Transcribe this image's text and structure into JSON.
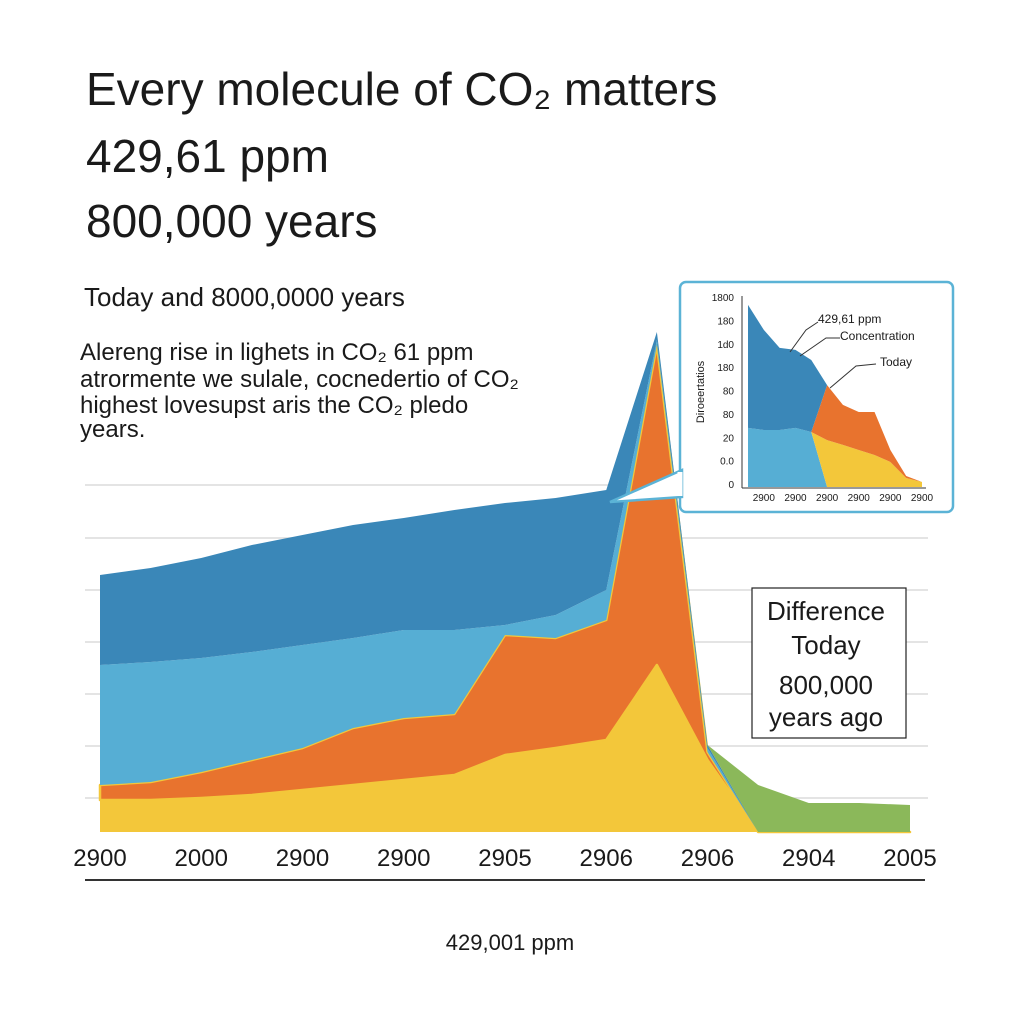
{
  "chart_data": [
    {
      "type": "area",
      "title": "Every molecule of CO₂ matters",
      "subtitle_lines": [
        "429,61 ppm",
        "800,000 years"
      ],
      "heading": "Today and 8000,0000 years",
      "description": [
        "Alereng rise in lighets in CO₂ 61 ppm",
        "atrormente we sulale, cocnedertio of CO₂",
        "highest lovesupst aris the CO₂ pledo",
        "years."
      ],
      "annotation": [
        "Difference",
        "Today",
        "800,000",
        "years ago"
      ],
      "footer": "429,001 ppm",
      "categories": [
        "2900",
        null,
        "2000",
        null,
        "2900",
        null,
        "2900",
        null,
        "2905",
        null,
        "2906",
        null,
        "2906",
        null,
        "2904",
        null,
        "2005"
      ],
      "ylim": [
        0,
        100
      ],
      "series": [
        {
          "color": "#f3c73a",
          "values": [
            6.4,
            6.4,
            6.8,
            7.4,
            8.4,
            9.4,
            10.4,
            11.4,
            15.4,
            16.8,
            18.4,
            33.4,
            14.4,
            0,
            0,
            0,
            0
          ]
        },
        {
          "color": "#e8732e",
          "values": [
            3,
            3.6,
            5.2,
            7,
            8.4,
            11.4,
            12.4,
            12.2,
            24,
            22,
            24,
            64,
            1.6,
            0,
            0,
            0,
            0
          ]
        },
        {
          "color": "#56aed4",
          "values": [
            24,
            24,
            22.8,
            21.6,
            20.6,
            18,
            17.6,
            16.8,
            2,
            4.6,
            6,
            1,
            0.8,
            0,
            0,
            0,
            0
          ]
        },
        {
          "color": "#3a87b8",
          "values": [
            18,
            18.8,
            20,
            21.4,
            22,
            22.6,
            22.4,
            24,
            24.4,
            23.4,
            20,
            1.6,
            0.6,
            0,
            0,
            0,
            0
          ]
        },
        {
          "color": "#8bb85a",
          "values": [
            0,
            0,
            0,
            0,
            0,
            0,
            0,
            0,
            0,
            0,
            0,
            0,
            0,
            9.4,
            5.8,
            5.8,
            5.4
          ]
        }
      ]
    },
    {
      "type": "area",
      "y_label": "Diroeertatios",
      "y_labels": [
        "1800",
        "180",
        "1d0",
        "180",
        "80",
        "80",
        "20",
        "0.0",
        "0"
      ],
      "annotations": [
        "429,61 ppm",
        "Concentration",
        "Today"
      ],
      "categories": [
        null,
        "2900",
        null,
        "2900",
        null,
        "2900",
        null,
        "2900",
        null,
        "2900",
        null,
        "2900"
      ],
      "ylim": [
        0,
        100
      ],
      "series": [
        {
          "color": "#56aed4",
          "values": [
            31.6,
            30.5,
            30.5,
            31.6,
            29.4,
            0,
            0,
            0,
            0,
            0,
            0,
            0
          ]
        },
        {
          "color": "#f3c73a",
          "values": [
            0,
            0,
            0,
            0,
            0,
            25.1,
            22.5,
            19.8,
            17.1,
            13.4,
            4.8,
            2.7
          ]
        },
        {
          "color": "#e8732e",
          "values": [
            0,
            0,
            0,
            0,
            0,
            29.4,
            21.4,
            20.3,
            23,
            6.4,
            1.1,
            0
          ]
        },
        {
          "color": "#3a87b8",
          "values": [
            65.8,
            53.5,
            43.9,
            41.7,
            38.5,
            0,
            0,
            0,
            0,
            0,
            0,
            0
          ]
        }
      ]
    }
  ]
}
